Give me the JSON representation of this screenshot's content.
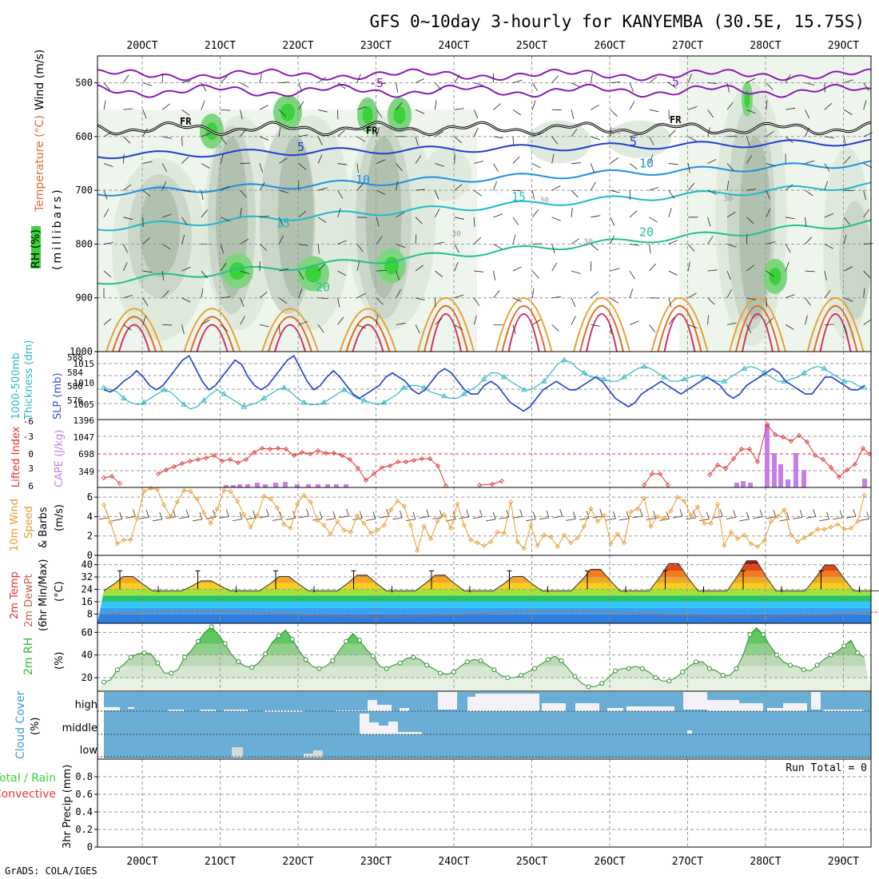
{
  "page": {
    "title": "GFS 0~10day 3-hourly for KANYEMBA (30.5E, 15.75S)",
    "footer": "GrADS: COLA/IGES",
    "run_total": "Run Total = 0"
  },
  "chart_data": {
    "type": "meteogram",
    "date_ticks": [
      "20OCT",
      "21OCT",
      "22OCT",
      "23OCT",
      "24OCT",
      "25OCT",
      "26OCT",
      "27OCT",
      "28OCT",
      "29OCT"
    ],
    "panels": [
      {
        "id": "profile",
        "type": "heatmap",
        "axis_label": [
          "RH (%)",
          "Temperature (°C)",
          "Wind (m/s)"
        ],
        "yunit_label": "(millibars)",
        "ylim": [
          1000,
          450
        ],
        "yticks": [
          "500",
          "600",
          "700",
          "800",
          "900",
          "1000"
        ],
        "freezing_label": "FR",
        "isotherm_labels": [
          "-5",
          "-5",
          "5",
          "5",
          "10",
          "10",
          "15",
          "15",
          "20",
          "20"
        ],
        "rh_labels": [
          "30",
          "30",
          "30",
          "30",
          "30"
        ],
        "days_rh_peaks": [
          0.8,
          2.2,
          3.0,
          8.4
        ]
      },
      {
        "id": "thickness_slp",
        "type": "line",
        "axis_label": [
          "1000-500mb",
          "Thickness (dm)",
          "SLP (mb)"
        ],
        "left_ticks": [
          "576",
          "580",
          "584",
          "588"
        ],
        "right_ticks": [
          "1005",
          "1010",
          "1015"
        ],
        "series": [
          {
            "name": "SLP",
            "unit": "mb",
            "color": "#1f3fd0",
            "values": [
              1009,
              1008.5,
              1009.5,
              1011,
              1012,
              1013.5,
              1012,
              1010,
              1009,
              1010,
              1012,
              1014,
              1016,
              1017,
              1014,
              1011,
              1009,
              1010,
              1012,
              1014,
              1016,
              1015,
              1012,
              1010,
              1009,
              1010,
              1012,
              1014,
              1016,
              1017,
              1014,
              1011,
              1009,
              1010,
              1012,
              1013.5,
              1012,
              1010,
              1008,
              1007,
              1008,
              1009,
              1010,
              1012,
              1013,
              1012,
              1011,
              1009,
              1008,
              1009,
              1011,
              1013,
              1014,
              1013,
              1011,
              1009,
              1008,
              1008,
              1010,
              1011,
              1010,
              1008,
              1006,
              1005,
              1004,
              1005,
              1007,
              1009,
              1010,
              1011,
              1010,
              1009,
              1009,
              1010,
              1011,
              1012,
              1011,
              1009,
              1007,
              1006,
              1005,
              1006,
              1008,
              1009,
              1010,
              1011,
              1010,
              1009,
              1008,
              1009,
              1010,
              1011,
              1012,
              1011,
              1010,
              1008,
              1007,
              1008,
              1010,
              1011,
              1012,
              1013,
              1014,
              1013,
              1011,
              1010,
              1009,
              1008,
              1008,
              1010,
              1012,
              1012,
              1011,
              1010,
              1009,
              1009,
              1010
            ]
          },
          {
            "name": "Thickness",
            "unit": "dm",
            "color": "#2fb9c1",
            "values": [
              580.5,
              580,
              579.5,
              578,
              577,
              576.5,
              577,
              578,
              579,
              580,
              579.5,
              578,
              576.5,
              575.5,
              576,
              577.5,
              579,
              580,
              579,
              578,
              577,
              576,
              576.5,
              577,
              578,
              579,
              580,
              580.5,
              579.5,
              578,
              577,
              576.5,
              576.5,
              577,
              578,
              579,
              580,
              579,
              578,
              577.5,
              577,
              576.5,
              577,
              578,
              579,
              580.5,
              581,
              581,
              580.5,
              579.5,
              579,
              578.5,
              578,
              578,
              579,
              580,
              581,
              582.5,
              584,
              584,
              583,
              582,
              581,
              580,
              580,
              581,
              582,
              584,
              586,
              587,
              586.5,
              585,
              584,
              583,
              583,
              582.5,
              582,
              582,
              583,
              584,
              585,
              585.5,
              585,
              584,
              583,
              582,
              582,
              582.5,
              583,
              583.5,
              583,
              582.5,
              582,
              582,
              583,
              584,
              585,
              585.5,
              585,
              584,
              583,
              582,
              582,
              582.5,
              583,
              584,
              585,
              585.5,
              585,
              584,
              583,
              582,
              582,
              581,
              580.5
            ]
          }
        ]
      },
      {
        "id": "instability",
        "type": "bar",
        "axis_label": [
          "Lifted Index",
          "CAPE (J/kg)"
        ],
        "left_ticks": [
          "6",
          "3",
          "0",
          "-3",
          "-6"
        ],
        "right_ticks": [
          "349",
          "698",
          "1047",
          "1396"
        ],
        "series": [
          {
            "name": "Lifted Index",
            "color": "#e03030",
            "style": "line"
          },
          {
            "name": "CAPE",
            "unit": "J/kg",
            "color": "#c77fe6",
            "style": "bar"
          }
        ]
      },
      {
        "id": "wind10m",
        "type": "line",
        "axis_label": [
          "10m Wind",
          "Speed",
          "& Barbs"
        ],
        "yunit_label": "(m/s)",
        "yticks": [
          "0",
          "2",
          "4",
          "6"
        ],
        "ylim": [
          0,
          7
        ],
        "series": [
          {
            "name": "10m Wind Speed",
            "unit": "m/s",
            "color": "#e89a2c",
            "values": [
              5.2,
              3.4,
              1.2,
              1.6,
              1.6,
              3.8,
              6.6,
              6.9,
              6.8,
              5.2,
              4,
              5.5,
              6.7,
              6.6,
              5.8,
              4.4,
              3.3,
              4.8,
              6.7,
              6.6,
              5.6,
              4.2,
              2.9,
              4.1,
              6.1,
              5.8,
              4.9,
              3.2,
              2.8,
              5.3,
              6.2,
              5.5,
              3.6,
              3.1,
              2.2,
              3.5,
              2.6,
              2.4,
              4.1,
              3.3,
              2.3,
              2.6,
              3.1,
              4.7,
              5.6,
              5.1,
              3.1,
              0.5,
              3.0,
              1.7,
              3.5,
              4.2,
              2.8,
              5.3,
              3.1,
              1.6,
              1.3,
              1.0,
              1.4,
              2.4,
              2.3,
              5.5,
              1.4,
              0.7,
              3.1,
              1.0,
              2.1,
              1.9,
              0.9,
              2.1,
              1.3,
              1.8,
              3.0,
              4.8,
              3.5,
              4.1,
              1.2,
              2.2,
              1.3,
              4.5,
              4.8,
              5.9,
              3.0,
              4.0,
              3.8,
              4.6,
              6.0,
              5.6,
              4.1,
              5.0,
              3.3,
              3.3,
              5.3,
              1.0,
              2.4,
              1.7,
              2.1,
              1.2,
              0.9,
              1.5,
              3.5,
              4.0,
              4.7,
              2.1,
              1.4,
              1.8,
              2.2,
              2.7,
              2.7,
              2.9,
              3.2,
              2.7,
              2.8,
              3.5,
              6.2
            ]
          }
        ]
      },
      {
        "id": "temperature",
        "type": "area",
        "axis_label": [
          "2m Temp",
          "2m DewPt",
          "(6hr Min/Max)"
        ],
        "yunit_label": "(°C)",
        "yticks": [
          "8",
          "16",
          "24",
          "32",
          "40"
        ],
        "ylim": [
          2,
          46
        ],
        "series": [
          {
            "name": "2m Temp",
            "unit": "°C",
            "values_summary": "diurnal cycle, minima ~22-23, maxima ~30-37 rising to ~44 on 26OCT"
          },
          {
            "name": "2m DewPt",
            "unit": "°C",
            "color": "#c0654d",
            "values_summary": "~5-10, rising to ~15 near 28OCT"
          }
        ]
      },
      {
        "id": "rh2m",
        "type": "area",
        "axis_label": [
          "2m RH"
        ],
        "yunit_label": "(%)",
        "yticks": [
          "20",
          "40",
          "60"
        ],
        "ylim": [
          8,
          68
        ],
        "series": [
          {
            "name": "2m RH",
            "unit": "%",
            "color": "#2d8c2d",
            "values": [
              16,
              18,
              27,
              32,
              38,
              41,
              42,
              41,
              33,
              24,
              24,
              27,
              38,
              44,
              52,
              60,
              65,
              58,
              50,
              40,
              34,
              30,
              29,
              33,
              41,
              51,
              57,
              62,
              54,
              44,
              36,
              30,
              28,
              30,
              35,
              44,
              52,
              59,
              53,
              45,
              39,
              30,
              28,
              31,
              33,
              37,
              38,
              36,
              31,
              28,
              24,
              23,
              25,
              30,
              34,
              36,
              35,
              31,
              27,
              22,
              20,
              20,
              22,
              25,
              28,
              32,
              36,
              39,
              35,
              28,
              21,
              15,
              12,
              12,
              15,
              20,
              26,
              28,
              28,
              30,
              28,
              25,
              20,
              17,
              17,
              20,
              25,
              30,
              34,
              34,
              28,
              26,
              22,
              22,
              28,
              40,
              58,
              64,
              58,
              48,
              40,
              34,
              31,
              30,
              27,
              26,
              31,
              36,
              40,
              43,
              48,
              53,
              42,
              38
            ]
          }
        ]
      },
      {
        "id": "cloud",
        "type": "bar",
        "axis_label": [
          "Cloud Cover"
        ],
        "yunit_label": "(%)",
        "row_labels": [
          "high",
          "middle",
          "low"
        ]
      },
      {
        "id": "precip",
        "type": "bar",
        "axis_label": [
          "Total / Rain",
          "Convective"
        ],
        "yunit_label": "3hr Precip (mm)",
        "yticks": [
          "0",
          "0.2",
          "0.4",
          "0.6",
          "0.8"
        ],
        "ylim": [
          0,
          1.0
        ],
        "series": [
          {
            "name": "Total / Rain",
            "color": "#3ad13a",
            "values": []
          },
          {
            "name": "Convective",
            "color": "#e83a3a",
            "values": []
          }
        ]
      }
    ]
  }
}
